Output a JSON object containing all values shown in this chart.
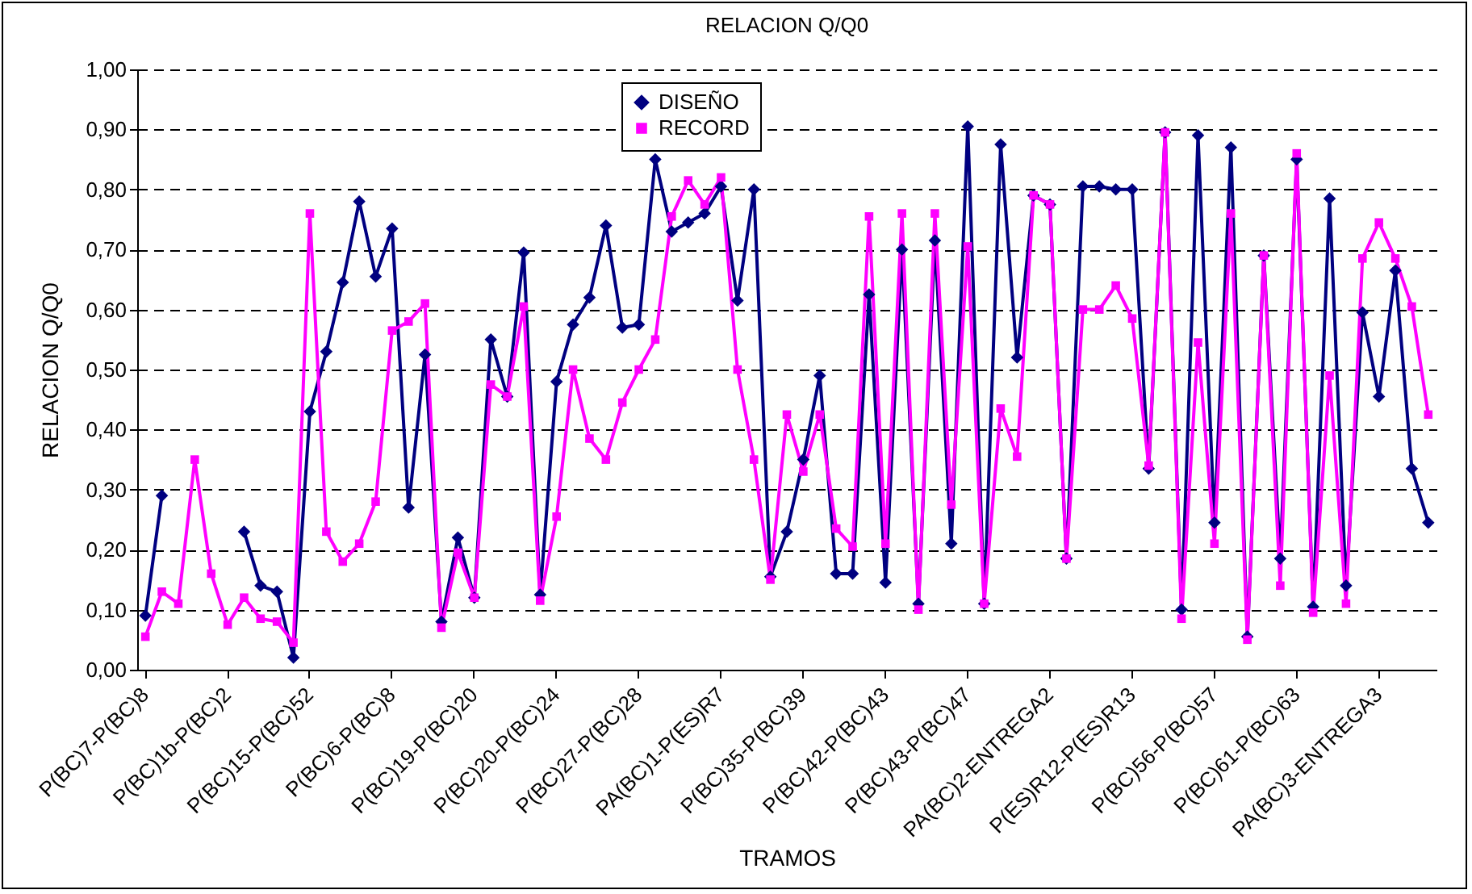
{
  "chart_data": {
    "type": "line",
    "title": "RELACION Q/Q0",
    "xlabel": "TRAMOS",
    "ylabel": "RELACION Q/Q0",
    "categories": [
      "P(BC)7-P(BC)8",
      null,
      null,
      null,
      null,
      "P(BC)1b-P(BC)2",
      null,
      null,
      null,
      null,
      "P(BC)15-P(BC)52",
      null,
      null,
      null,
      null,
      "P(BC)6-P(BC)8",
      null,
      null,
      null,
      null,
      "P(BC)19-P(BC)20",
      null,
      null,
      null,
      null,
      "P(BC)20-P(BC)24",
      null,
      null,
      null,
      null,
      "P(BC)27-P(BC)28",
      null,
      null,
      null,
      null,
      "PA(BC)1-P(ES)R7",
      null,
      null,
      null,
      null,
      "P(BC)35-P(BC)39",
      null,
      null,
      null,
      null,
      "P(BC)42-P(BC)43",
      null,
      null,
      null,
      null,
      "P(BC)43-P(BC)47",
      null,
      null,
      null,
      null,
      "PA(BC)2-ENTREGA2",
      null,
      null,
      null,
      null,
      "P(ES)R12-P(ES)R13",
      null,
      null,
      null,
      null,
      "P(BC)56-P(BC)57",
      null,
      null,
      null,
      null,
      "P(BC)61-P(BC)63",
      null,
      null,
      null,
      null,
      "PA(BC)3-ENTREGA3",
      null,
      null,
      null
    ],
    "series": [
      {
        "name": "DISEÑO",
        "color": "#000080",
        "marker": "diamond",
        "values": [
          0.09,
          0.29,
          null,
          null,
          null,
          null,
          0.23,
          0.14,
          0.13,
          0.02,
          0.43,
          0.53,
          0.645,
          0.78,
          0.655,
          0.735,
          0.27,
          0.525,
          0.08,
          0.22,
          0.12,
          0.55,
          0.455,
          0.695,
          0.125,
          0.48,
          0.575,
          0.62,
          0.74,
          0.57,
          0.575,
          0.85,
          0.73,
          0.745,
          0.76,
          0.805,
          0.615,
          0.8,
          0.155,
          0.23,
          0.35,
          0.49,
          0.16,
          0.16,
          0.625,
          0.145,
          0.7,
          0.11,
          0.715,
          0.21,
          0.905,
          0.11,
          0.875,
          0.52,
          0.79,
          0.775,
          0.185,
          0.805,
          0.805,
          0.8,
          0.8,
          0.335,
          0.895,
          0.1,
          0.89,
          0.245,
          0.87,
          0.055,
          0.69,
          0.185,
          0.85,
          0.105,
          0.785,
          0.14,
          0.595,
          0.455,
          0.665,
          0.335,
          0.245
        ]
      },
      {
        "name": "RECORD",
        "color": "#ff00ff",
        "marker": "square",
        "values": [
          0.055,
          0.13,
          0.11,
          0.35,
          0.16,
          0.075,
          0.12,
          0.085,
          0.08,
          0.045,
          0.76,
          0.23,
          0.18,
          0.21,
          0.28,
          0.565,
          0.58,
          0.61,
          0.07,
          0.195,
          0.12,
          0.475,
          0.455,
          0.605,
          0.115,
          0.255,
          0.5,
          0.385,
          0.35,
          0.445,
          0.5,
          0.55,
          0.755,
          0.815,
          0.775,
          0.82,
          0.5,
          0.35,
          0.15,
          0.425,
          0.33,
          0.425,
          0.235,
          0.205,
          0.755,
          0.21,
          0.76,
          0.1,
          0.76,
          0.275,
          0.705,
          0.11,
          0.435,
          0.355,
          0.79,
          0.775,
          0.185,
          0.6,
          0.6,
          0.64,
          0.585,
          0.34,
          0.895,
          0.085,
          0.545,
          0.21,
          0.76,
          0.05,
          0.69,
          0.14,
          0.86,
          0.095,
          0.49,
          0.11,
          0.685,
          0.745,
          0.685,
          0.605,
          0.425
        ]
      }
    ],
    "ylim": [
      0,
      1
    ],
    "yticks": [
      {
        "value": 0,
        "label": "0,00"
      },
      {
        "value": 0.1,
        "label": "0,10"
      },
      {
        "value": 0.2,
        "label": "0,20"
      },
      {
        "value": 0.3,
        "label": "0,30"
      },
      {
        "value": 0.4,
        "label": "0,40"
      },
      {
        "value": 0.5,
        "label": "0,50"
      },
      {
        "value": 0.6,
        "label": "0,60"
      },
      {
        "value": 0.7,
        "label": "0,70"
      },
      {
        "value": 0.8,
        "label": "0,80"
      },
      {
        "value": 0.9,
        "label": "0,90"
      },
      {
        "value": 1,
        "label": "1,00"
      }
    ],
    "grid": "y",
    "legend": "top left"
  }
}
